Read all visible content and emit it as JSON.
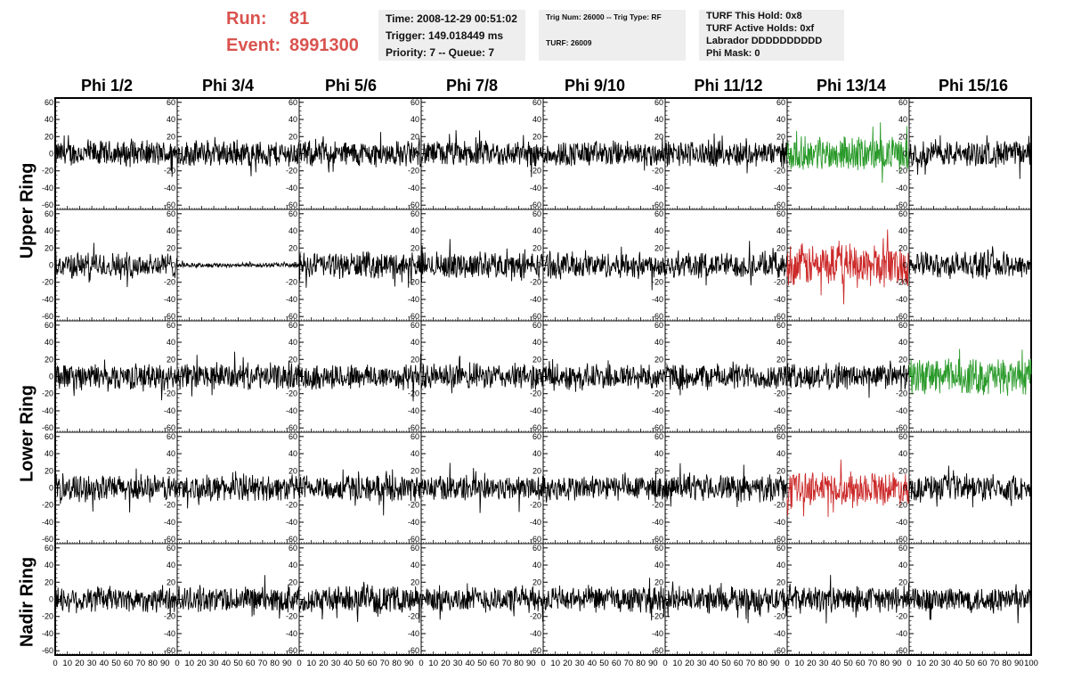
{
  "header": {
    "run_label": "Run:",
    "run_value": "81",
    "event_label": "Event:",
    "event_value": "8991300",
    "time": "Time: 2008-12-29 00:51:02",
    "trigger": "Trigger: 149.018449 ms",
    "priority": "Priority: 7 -- Queue: 7",
    "trig_num": "Trig Num: 26000 -- Trig Type: RF",
    "turf": "TURF: 26009",
    "turf_this_hold": "TURF This Hold: 0x8",
    "turf_active_holds": "TURF Active Holds: 0xf",
    "labrador": "Labrador DDDDDDDDDD",
    "phi_mask": "Phi Mask: 0"
  },
  "columns": [
    "Phi 1/2",
    "Phi 3/4",
    "Phi 5/6",
    "Phi 7/8",
    "Phi 9/10",
    "Phi 11/12",
    "Phi 13/14",
    "Phi 15/16"
  ],
  "row_groups": [
    "Upper Ring",
    "Lower Ring",
    "Nadir Ring"
  ],
  "chart_data": {
    "type": "line",
    "xlim": [
      0,
      100
    ],
    "ylim": [
      -65,
      65
    ],
    "y_ticks": [
      -60,
      -40,
      -20,
      0,
      20,
      40,
      60
    ],
    "x_ticks": [
      0,
      10,
      20,
      30,
      40,
      50,
      60,
      70,
      80,
      90,
      100
    ],
    "x_tick_labels": [
      "0",
      "10",
      "20",
      "30",
      "40",
      "50",
      "60",
      "70",
      "80",
      "90",
      "100"
    ],
    "panel_rows": 5,
    "panel_cols": 8,
    "colors": {
      "default": "#000000",
      "green": "#2a9a2a",
      "red": "#cc2a2a"
    },
    "panels": [
      {
        "row": 0,
        "col": 6,
        "color": "green",
        "amplitude": 22
      },
      {
        "row": 1,
        "col": 6,
        "color": "red",
        "amplitude": 28
      },
      {
        "row": 2,
        "col": 7,
        "color": "green",
        "amplitude": 24
      },
      {
        "row": 3,
        "col": 6,
        "color": "red",
        "amplitude": 22
      },
      {
        "row": 1,
        "col": 1,
        "color": "default",
        "amplitude": 3
      }
    ],
    "default_amplitude": 17
  }
}
